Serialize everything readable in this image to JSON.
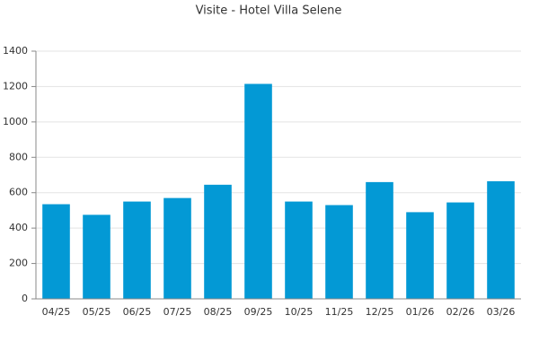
{
  "chart_data": {
    "type": "bar",
    "title": "Visite - Hotel Villa Selene",
    "categories": [
      "04/25",
      "05/25",
      "06/25",
      "07/25",
      "08/25",
      "09/25",
      "10/25",
      "11/25",
      "12/25",
      "01/26",
      "02/26",
      "03/26"
    ],
    "values": [
      535,
      475,
      550,
      570,
      645,
      1215,
      550,
      530,
      660,
      490,
      545,
      665
    ],
    "color": "#0399d5",
    "ylim": [
      0,
      1400
    ],
    "yticks": [
      0,
      200,
      400,
      600,
      800,
      1000,
      1200,
      1400
    ],
    "grid": true
  }
}
